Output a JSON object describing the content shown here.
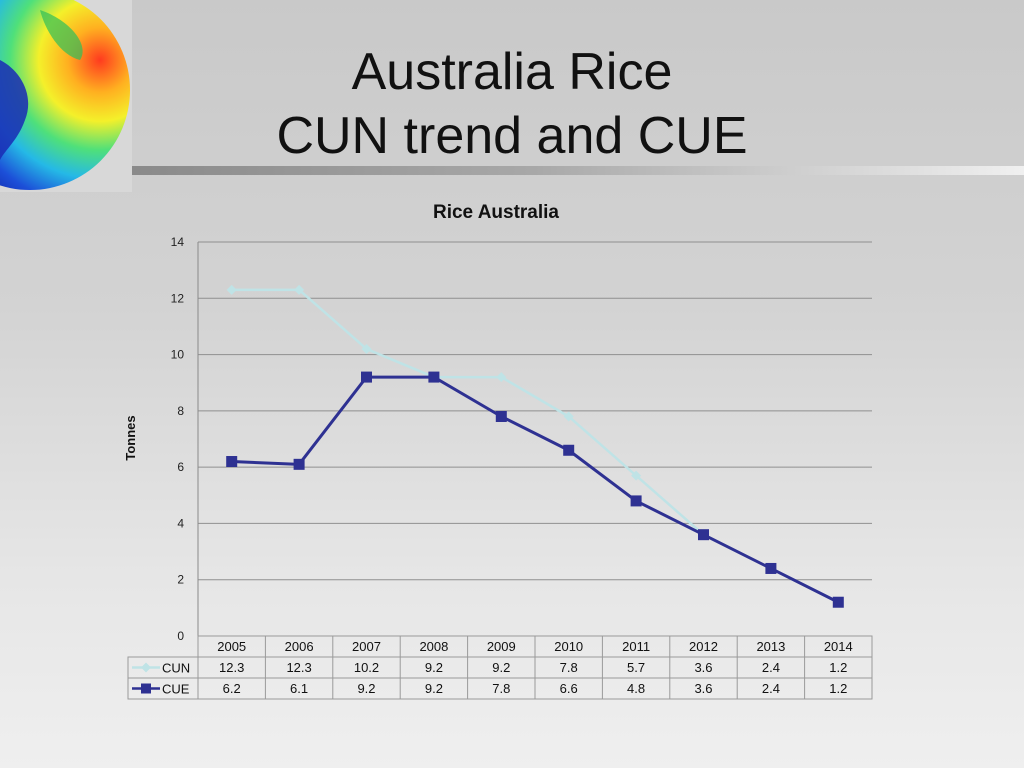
{
  "slide": {
    "title_line1": "Australia Rice",
    "title_line2": "CUN trend and CUE",
    "logo_icon": "globe-heatmap-image"
  },
  "chart_data": {
    "type": "line",
    "title": "Rice Australia",
    "xlabel": "",
    "ylabel": "Tonnes",
    "categories": [
      "2005",
      "2006",
      "2007",
      "2008",
      "2009",
      "2010",
      "2011",
      "2012",
      "2013",
      "2014"
    ],
    "ylim": [
      0,
      14
    ],
    "yticks": [
      0,
      2,
      4,
      6,
      8,
      10,
      12,
      14
    ],
    "grid": true,
    "legend": "data-table-left",
    "series": [
      {
        "name": "CUN",
        "values": [
          12.3,
          12.3,
          10.2,
          9.2,
          9.2,
          7.8,
          5.7,
          3.6,
          2.4,
          1.2
        ],
        "color": "#bfe3e6",
        "marker": "diamond"
      },
      {
        "name": "CUE",
        "values": [
          6.2,
          6.1,
          9.2,
          9.2,
          7.8,
          6.6,
          4.8,
          3.6,
          2.4,
          1.2
        ],
        "color": "#2e3192",
        "marker": "square"
      }
    ],
    "table_values": [
      [
        "12.3",
        "12.3",
        "10.2",
        "9.2",
        "9.2",
        "7.8",
        "5.7",
        "3.6",
        "2.4",
        "1.2"
      ],
      [
        "6.2",
        "6.1",
        "9.2",
        "9.2",
        "7.8",
        "6.6",
        "4.8",
        "3.6",
        "2.4",
        "1.2"
      ]
    ]
  }
}
